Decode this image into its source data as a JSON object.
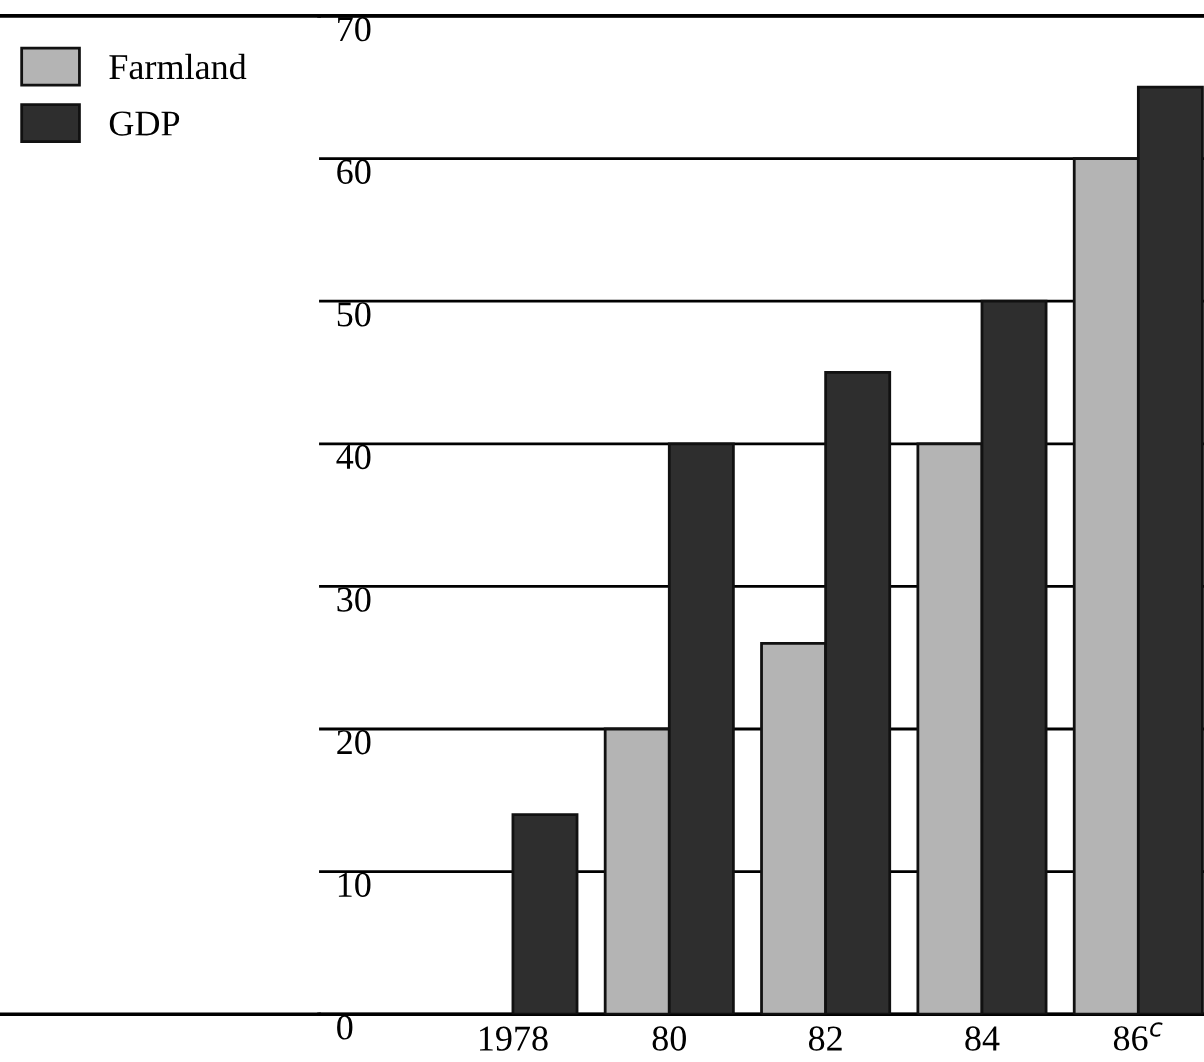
{
  "chart_data": {
    "type": "bar",
    "categories": [
      "1978",
      "80",
      "82",
      "84",
      "86$^{c}$"
    ],
    "series": [
      {
        "name": "Farmland",
        "color": "#b4b4b4",
        "values": [
          null,
          20,
          26,
          40,
          60
        ]
      },
      {
        "name": "GDP",
        "color": "#2e2e2e",
        "values": [
          14,
          40,
          45,
          50,
          65
        ]
      }
    ],
    "ylim": [
      0,
      70
    ],
    "yticks": [
      0,
      10,
      20,
      30,
      40,
      50,
      60,
      70
    ],
    "grid": "y",
    "legend": "top left"
  }
}
